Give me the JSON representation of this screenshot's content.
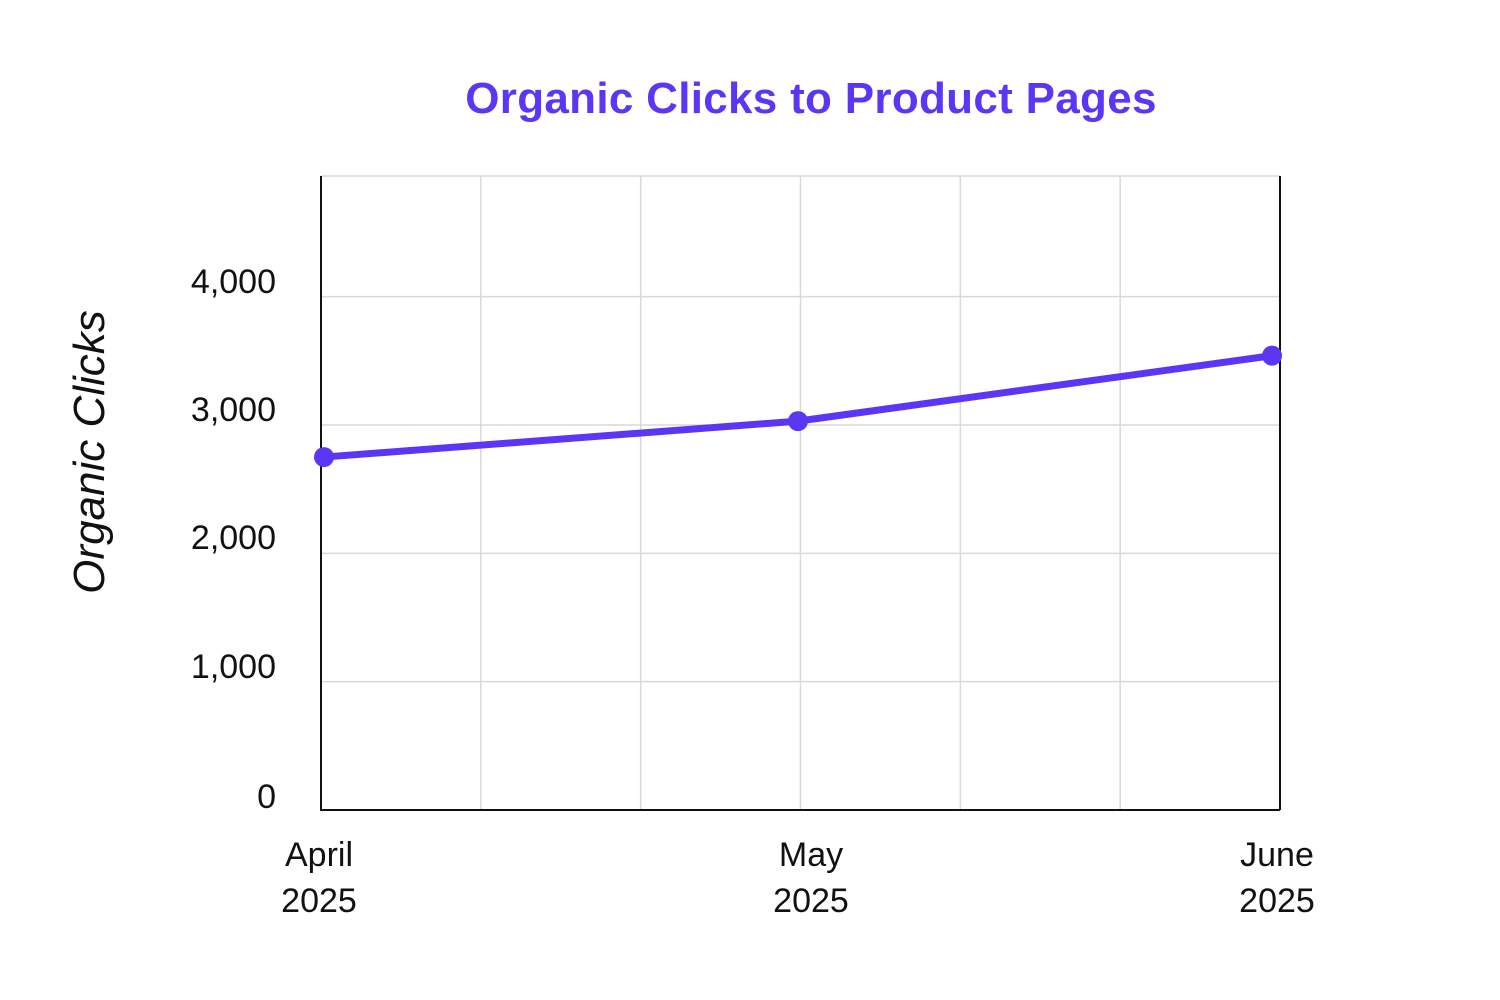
{
  "colors": {
    "accent": "#5b36f5",
    "grid": "#d9d9d9",
    "axis": "#111111",
    "background": "#ffffff"
  },
  "chart_data": {
    "type": "line",
    "title": "Organic Clicks to Product Pages",
    "xlabel": "",
    "ylabel": "Organic Clicks",
    "categories": [
      "April 2025",
      "May 2025",
      "June 2025"
    ],
    "x_tick_labels": [
      [
        "April",
        "2025"
      ],
      [
        "May",
        "2025"
      ],
      [
        "June",
        "2025"
      ]
    ],
    "series": [
      {
        "name": "Organic Clicks",
        "values": [
          2750,
          3030,
          3540
        ],
        "color": "#5b36f5",
        "markers": true
      }
    ],
    "y_ticks": [
      0,
      1000,
      2000,
      3000,
      4000
    ],
    "y_tick_labels": [
      "0",
      "1,000",
      "2,000",
      "3,000",
      "4,000"
    ],
    "ylim": [
      0,
      4940
    ],
    "grid": true,
    "legend": "none"
  }
}
